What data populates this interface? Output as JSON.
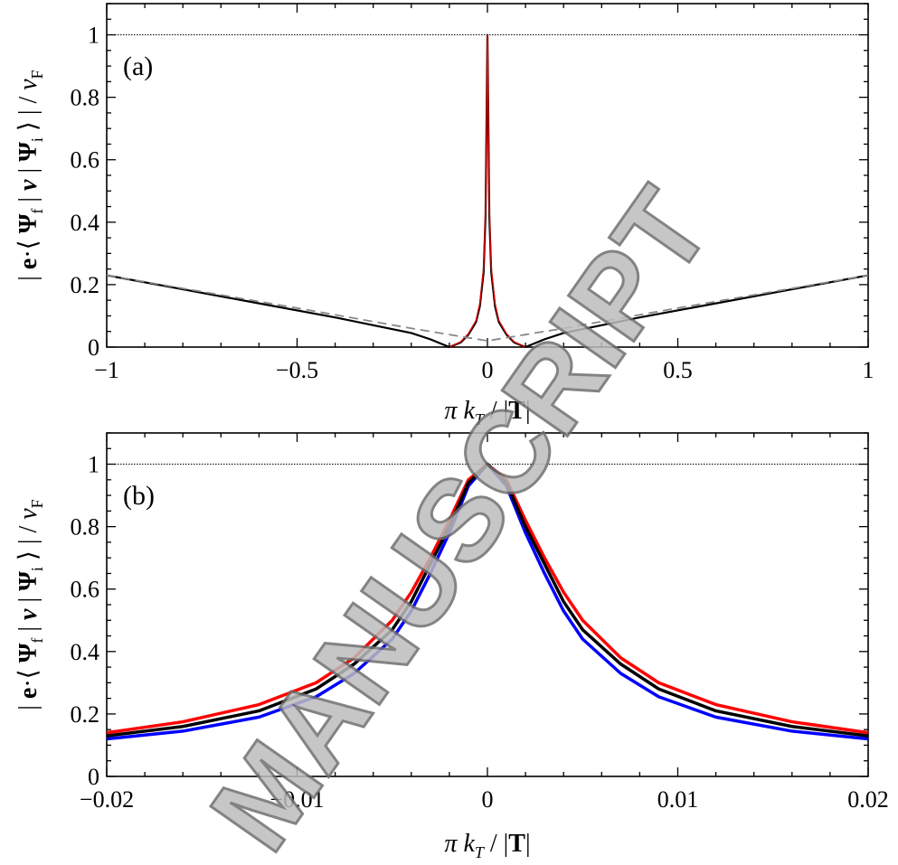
{
  "watermark": "MANUSCRIPT",
  "ylabel_parts": [
    "| ",
    "e",
    "·⟨ ",
    "Ψ",
    "f",
    " | ",
    "v",
    " | ",
    "Ψ",
    "i",
    " ⟩ | / ",
    "v",
    "F"
  ],
  "xlabel_parts": [
    "π ",
    "k",
    "T",
    " / |",
    "T",
    "|"
  ],
  "chart_data": [
    {
      "type": "line",
      "panel_label": "(a)",
      "xlim": [
        -1,
        1
      ],
      "ylim": [
        0,
        1.1
      ],
      "xticks": [
        -1,
        -0.5,
        0,
        0.5,
        1
      ],
      "xtick_labels": [
        "−1",
        "−0.5",
        "0",
        "0.5",
        "1"
      ],
      "yticks": [
        0,
        0.2,
        0.4,
        0.6,
        0.8,
        1
      ],
      "ytick_labels": [
        "0",
        "0.2",
        "0.4",
        "0.6",
        "0.8",
        "1"
      ],
      "reference_line_y": 1,
      "series": [
        {
          "color": "#000000",
          "style": "solid",
          "x": [
            -1,
            -0.8,
            -0.6,
            -0.4,
            -0.3,
            -0.2,
            -0.15,
            -0.1,
            -0.07,
            -0.05,
            -0.03,
            -0.02,
            -0.01,
            -0.005,
            0,
            0.005,
            0.01,
            0.02,
            0.03,
            0.05,
            0.07,
            0.1,
            0.15,
            0.2,
            0.3,
            0.4,
            0.6,
            0.8,
            1
          ],
          "y": [
            0.23,
            0.185,
            0.14,
            0.095,
            0.07,
            0.045,
            0.025,
            0.0,
            0.015,
            0.04,
            0.08,
            0.13,
            0.24,
            0.42,
            1.0,
            0.42,
            0.24,
            0.13,
            0.08,
            0.04,
            0.015,
            0.0,
            0.025,
            0.045,
            0.07,
            0.095,
            0.14,
            0.185,
            0.23
          ]
        },
        {
          "color": "#d40000",
          "style": "solid",
          "x": [
            -0.1,
            -0.07,
            -0.05,
            -0.03,
            -0.02,
            -0.01,
            -0.005,
            0,
            0.005,
            0.01,
            0.02,
            0.03,
            0.05,
            0.07,
            0.1
          ],
          "y": [
            0.0,
            0.017,
            0.043,
            0.085,
            0.14,
            0.255,
            0.44,
            1.0,
            0.44,
            0.255,
            0.14,
            0.085,
            0.043,
            0.017,
            0.0
          ]
        },
        {
          "color": "#888888",
          "style": "dashed",
          "x": [
            -1,
            -0.5,
            -0.2,
            -0.1,
            0,
            0.1,
            0.2,
            0.5,
            1
          ],
          "y": [
            0.23,
            0.125,
            0.06,
            0.04,
            0.02,
            0.04,
            0.06,
            0.125,
            0.23
          ]
        }
      ]
    },
    {
      "type": "line",
      "panel_label": "(b)",
      "xlim": [
        -0.02,
        0.02
      ],
      "ylim": [
        0,
        1.1
      ],
      "xticks": [
        -0.02,
        -0.01,
        0,
        0.01,
        0.02
      ],
      "xtick_labels": [
        "−0.02",
        "−0.01",
        "0",
        "0.01",
        "0.02"
      ],
      "yticks": [
        0,
        0.2,
        0.4,
        0.6,
        0.8,
        1
      ],
      "ytick_labels": [
        "0",
        "0.2",
        "0.4",
        "0.6",
        "0.8",
        "1"
      ],
      "reference_line_y": 1,
      "series": [
        {
          "color": "#ff0000",
          "x": [
            -0.02,
            -0.016,
            -0.012,
            -0.009,
            -0.007,
            -0.005,
            -0.004,
            -0.003,
            -0.002,
            -0.001,
            0,
            0.001,
            0.002,
            0.003,
            0.004,
            0.005,
            0.007,
            0.009,
            0.012,
            0.016,
            0.02
          ],
          "y": [
            0.14,
            0.175,
            0.23,
            0.3,
            0.38,
            0.5,
            0.59,
            0.7,
            0.82,
            0.95,
            1.0,
            0.95,
            0.82,
            0.7,
            0.59,
            0.5,
            0.38,
            0.3,
            0.23,
            0.175,
            0.14
          ]
        },
        {
          "color": "#000000",
          "x": [
            -0.02,
            -0.016,
            -0.012,
            -0.009,
            -0.007,
            -0.005,
            -0.004,
            -0.003,
            -0.002,
            -0.001,
            0,
            0.001,
            0.002,
            0.003,
            0.004,
            0.005,
            0.007,
            0.009,
            0.012,
            0.016,
            0.02
          ],
          "y": [
            0.13,
            0.16,
            0.21,
            0.28,
            0.36,
            0.47,
            0.56,
            0.68,
            0.8,
            0.94,
            1.0,
            0.94,
            0.8,
            0.68,
            0.56,
            0.47,
            0.36,
            0.28,
            0.21,
            0.16,
            0.13
          ]
        },
        {
          "color": "#0000ff",
          "x": [
            -0.02,
            -0.016,
            -0.012,
            -0.009,
            -0.007,
            -0.005,
            -0.004,
            -0.003,
            -0.002,
            -0.001,
            0,
            0.001,
            0.002,
            0.003,
            0.004,
            0.005,
            0.007,
            0.009,
            0.012,
            0.016,
            0.02
          ],
          "y": [
            0.12,
            0.145,
            0.19,
            0.255,
            0.33,
            0.44,
            0.53,
            0.65,
            0.78,
            0.93,
            1.0,
            0.93,
            0.78,
            0.65,
            0.53,
            0.44,
            0.33,
            0.255,
            0.19,
            0.145,
            0.12
          ]
        }
      ]
    }
  ]
}
